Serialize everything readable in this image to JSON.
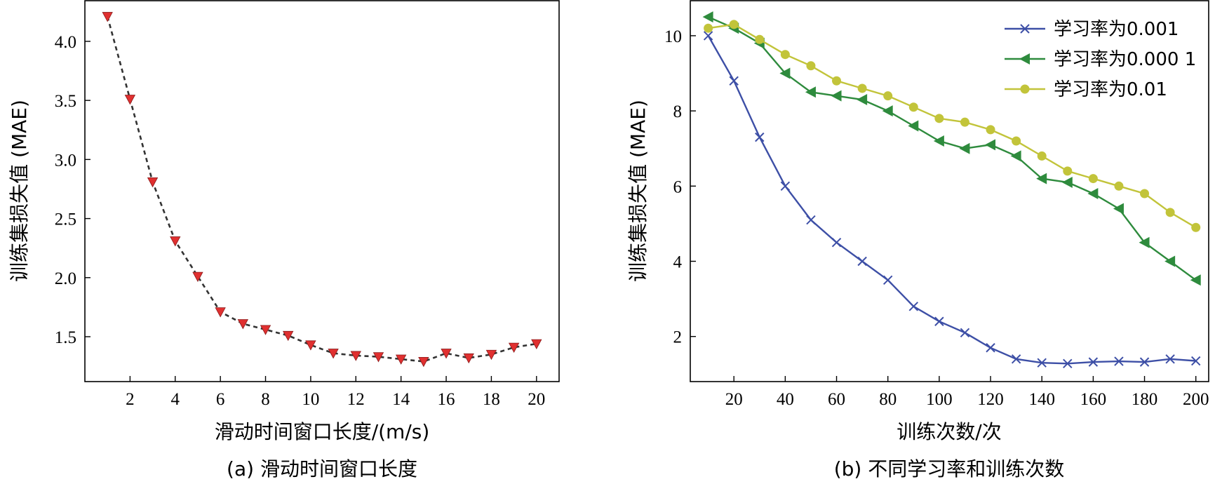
{
  "chart_data": [
    {
      "id": "a",
      "type": "line",
      "caption": "(a) 滑动时间窗口长度",
      "xlabel": "滑动时间窗口长度/(m/s)",
      "ylabel": "训练集损失值 (MAE)",
      "xlim": [
        0,
        21
      ],
      "ylim": [
        1.12,
        4.35
      ],
      "xticks": [
        2,
        4,
        6,
        8,
        10,
        12,
        14,
        16,
        18,
        20
      ],
      "yticks": [
        1.5,
        2.0,
        2.5,
        3.0,
        3.5,
        4.0
      ],
      "ytick_labels": [
        "1.5",
        "2.0",
        "2.5",
        "3.0",
        "3.5",
        "4.0"
      ],
      "grid": false,
      "series": [
        {
          "color": "#e03030",
          "line_color": "#333333",
          "marker": "triangle-down",
          "line_style": "dashed",
          "x": [
            1,
            2,
            3,
            4,
            5,
            6,
            7,
            8,
            9,
            10,
            11,
            12,
            13,
            14,
            15,
            16,
            17,
            18,
            19,
            20
          ],
          "values": [
            4.21,
            3.51,
            2.81,
            2.31,
            2.01,
            1.71,
            1.61,
            1.56,
            1.51,
            1.43,
            1.36,
            1.34,
            1.33,
            1.31,
            1.29,
            1.36,
            1.32,
            1.35,
            1.41,
            1.44
          ]
        }
      ]
    },
    {
      "id": "b",
      "type": "line",
      "caption": "(b) 不同学习率和训练次数",
      "xlabel": "训练次数/次",
      "ylabel": "训练集损失值 (MAE)",
      "xlim": [
        3,
        205
      ],
      "ylim": [
        0.8,
        10.95
      ],
      "xticks": [
        20,
        40,
        60,
        80,
        100,
        120,
        140,
        160,
        180,
        200
      ],
      "yticks": [
        2,
        4,
        6,
        8,
        10
      ],
      "ytick_labels": [
        "2",
        "4",
        "6",
        "8",
        "10"
      ],
      "grid": false,
      "legend_position": "top-right",
      "series": [
        {
          "name": "学习率为0.001",
          "color": "#3d4fa6",
          "marker": "x",
          "x": [
            10,
            20,
            30,
            40,
            50,
            60,
            70,
            80,
            90,
            100,
            110,
            120,
            130,
            140,
            150,
            160,
            170,
            180,
            190,
            200
          ],
          "values": [
            10.0,
            8.8,
            7.3,
            6.0,
            5.1,
            4.5,
            4.0,
            3.5,
            2.8,
            2.4,
            2.1,
            1.7,
            1.4,
            1.3,
            1.28,
            1.32,
            1.34,
            1.32,
            1.4,
            1.35
          ]
        },
        {
          "name": "学习率为0.000 1",
          "color": "#2e8b3d",
          "marker": "triangle-left",
          "x": [
            10,
            20,
            30,
            40,
            50,
            60,
            70,
            80,
            90,
            100,
            110,
            120,
            130,
            140,
            150,
            160,
            170,
            180,
            190,
            200
          ],
          "values": [
            10.5,
            10.2,
            9.8,
            9.0,
            8.5,
            8.4,
            8.3,
            8.0,
            7.6,
            7.2,
            7.0,
            7.1,
            6.8,
            6.2,
            6.1,
            5.8,
            5.4,
            4.5,
            4.0,
            3.5
          ]
        },
        {
          "name": "学习率为0.01",
          "color": "#c2c43a",
          "marker": "circle",
          "x": [
            10,
            20,
            30,
            40,
            50,
            60,
            70,
            80,
            90,
            100,
            110,
            120,
            130,
            140,
            150,
            160,
            170,
            180,
            190,
            200
          ],
          "values": [
            10.2,
            10.3,
            9.9,
            9.5,
            9.2,
            8.8,
            8.6,
            8.4,
            8.1,
            7.8,
            7.7,
            7.5,
            7.2,
            6.8,
            6.4,
            6.2,
            6.0,
            5.8,
            5.3,
            4.9
          ]
        }
      ]
    }
  ]
}
